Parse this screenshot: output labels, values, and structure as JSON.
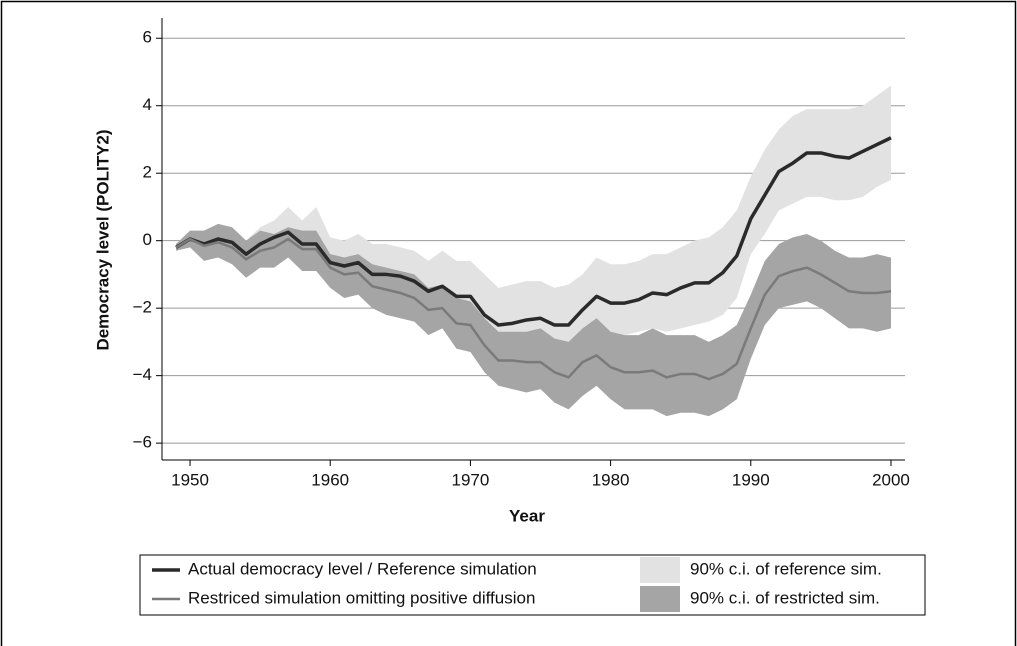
{
  "chart_data": {
    "type": "line",
    "x_label": "Year",
    "y_label": "Democracy level (POLITY2)",
    "x": [
      1949,
      1950,
      1951,
      1952,
      1953,
      1954,
      1955,
      1956,
      1957,
      1958,
      1959,
      1960,
      1961,
      1962,
      1963,
      1964,
      1965,
      1966,
      1967,
      1968,
      1969,
      1970,
      1971,
      1972,
      1973,
      1974,
      1975,
      1976,
      1977,
      1978,
      1979,
      1980,
      1981,
      1982,
      1983,
      1984,
      1985,
      1986,
      1987,
      1988,
      1989,
      1990,
      1991,
      1992,
      1993,
      1994,
      1995,
      1996,
      1997,
      1998,
      1999,
      2000
    ],
    "xlim": [
      1948,
      2001
    ],
    "xticks": [
      1950,
      1960,
      1970,
      1980,
      1990,
      2000
    ],
    "ylim": [
      -6.5,
      6.6
    ],
    "yticks": [
      {
        "value": -6,
        "label": "−6"
      },
      {
        "value": -4,
        "label": "−4"
      },
      {
        "value": -2,
        "label": "−2"
      },
      0,
      2,
      4,
      6
    ],
    "grid": true,
    "bands": [
      {
        "name": "90% c.i. of reference sim.",
        "color": "#e2e2e2",
        "upper": [
          -0.1,
          0.3,
          0.2,
          0.4,
          0.3,
          0.0,
          0.4,
          0.6,
          1.0,
          0.6,
          1.0,
          0.1,
          0.0,
          0.2,
          -0.1,
          -0.1,
          -0.2,
          -0.3,
          -0.6,
          -0.3,
          -0.6,
          -0.6,
          -1.0,
          -1.4,
          -1.3,
          -1.2,
          -1.2,
          -1.4,
          -1.3,
          -1.0,
          -0.5,
          -0.7,
          -0.7,
          -0.6,
          -0.4,
          -0.4,
          -0.2,
          0.0,
          0.1,
          0.4,
          0.9,
          1.9,
          2.7,
          3.3,
          3.7,
          3.9,
          3.9,
          3.9,
          3.9,
          4.0,
          4.3,
          4.6
        ],
        "lower": [
          -0.3,
          -0.2,
          -0.4,
          -0.4,
          -0.5,
          -0.9,
          -0.7,
          -0.6,
          -0.5,
          -0.8,
          -0.8,
          -1.4,
          -1.5,
          -1.5,
          -1.9,
          -2.0,
          -2.0,
          -2.2,
          -2.5,
          -2.4,
          -2.8,
          -2.9,
          -3.4,
          -3.6,
          -3.6,
          -3.5,
          -3.5,
          -3.6,
          -3.7,
          -3.2,
          -2.7,
          -2.8,
          -2.8,
          -2.7,
          -2.6,
          -2.7,
          -2.6,
          -2.5,
          -2.4,
          -2.2,
          -1.7,
          -0.4,
          0.2,
          0.9,
          1.1,
          1.3,
          1.3,
          1.2,
          1.2,
          1.3,
          1.6,
          1.8
        ]
      },
      {
        "name": "90% c.i. of restricted sim.",
        "color": "#a5a5a5",
        "upper": [
          -0.1,
          0.3,
          0.3,
          0.5,
          0.4,
          0.0,
          0.3,
          0.2,
          0.4,
          0.3,
          0.3,
          -0.4,
          -0.5,
          -0.4,
          -0.7,
          -0.8,
          -0.9,
          -1.0,
          -1.4,
          -1.3,
          -1.7,
          -1.8,
          -2.3,
          -2.7,
          -2.7,
          -2.7,
          -2.6,
          -2.9,
          -3.0,
          -2.6,
          -2.3,
          -2.7,
          -2.8,
          -2.8,
          -2.6,
          -2.8,
          -2.8,
          -2.8,
          -3.0,
          -2.8,
          -2.5,
          -1.6,
          -0.6,
          -0.1,
          0.1,
          0.2,
          0.0,
          -0.3,
          -0.5,
          -0.5,
          -0.4,
          -0.5
        ],
        "lower": [
          -0.3,
          -0.2,
          -0.6,
          -0.5,
          -0.7,
          -1.1,
          -0.8,
          -0.8,
          -0.5,
          -0.9,
          -0.9,
          -1.4,
          -1.7,
          -1.6,
          -2.0,
          -2.2,
          -2.3,
          -2.4,
          -2.8,
          -2.6,
          -3.2,
          -3.3,
          -3.9,
          -4.3,
          -4.4,
          -4.5,
          -4.4,
          -4.8,
          -5.0,
          -4.6,
          -4.3,
          -4.7,
          -5.0,
          -5.0,
          -5.0,
          -5.2,
          -5.1,
          -5.1,
          -5.2,
          -5.0,
          -4.7,
          -3.5,
          -2.5,
          -2.0,
          -1.9,
          -1.8,
          -2.0,
          -2.3,
          -2.6,
          -2.6,
          -2.7,
          -2.6
        ]
      }
    ],
    "series": [
      {
        "name": "Actual democracy level / Reference simulation",
        "color": "#2a2a2a",
        "values": [
          -0.2,
          0.05,
          -0.1,
          0.05,
          -0.05,
          -0.4,
          -0.1,
          0.1,
          0.25,
          -0.1,
          -0.1,
          -0.65,
          -0.75,
          -0.65,
          -1.0,
          -1.0,
          -1.05,
          -1.2,
          -1.5,
          -1.35,
          -1.65,
          -1.65,
          -2.2,
          -2.5,
          -2.45,
          -2.35,
          -2.3,
          -2.5,
          -2.5,
          -2.05,
          -1.65,
          -1.85,
          -1.85,
          -1.75,
          -1.55,
          -1.6,
          -1.4,
          -1.25,
          -1.25,
          -0.95,
          -0.45,
          0.65,
          1.35,
          2.05,
          2.3,
          2.6,
          2.6,
          2.5,
          2.45,
          2.65,
          2.85,
          3.05
        ]
      },
      {
        "name": "Restriced simulation omitting positive diffusion",
        "color": "#7a7a7a",
        "values": [
          -0.2,
          0.05,
          -0.15,
          -0.05,
          -0.2,
          -0.55,
          -0.3,
          -0.2,
          0.05,
          -0.25,
          -0.25,
          -0.8,
          -1.0,
          -0.95,
          -1.35,
          -1.45,
          -1.55,
          -1.7,
          -2.05,
          -2.0,
          -2.45,
          -2.5,
          -3.1,
          -3.55,
          -3.55,
          -3.6,
          -3.6,
          -3.9,
          -4.05,
          -3.6,
          -3.4,
          -3.75,
          -3.9,
          -3.9,
          -3.85,
          -4.05,
          -3.95,
          -3.95,
          -4.1,
          -3.95,
          -3.65,
          -2.6,
          -1.6,
          -1.05,
          -0.9,
          -0.8,
          -1.0,
          -1.25,
          -1.5,
          -1.55,
          -1.55,
          -1.5
        ]
      }
    ]
  }
}
